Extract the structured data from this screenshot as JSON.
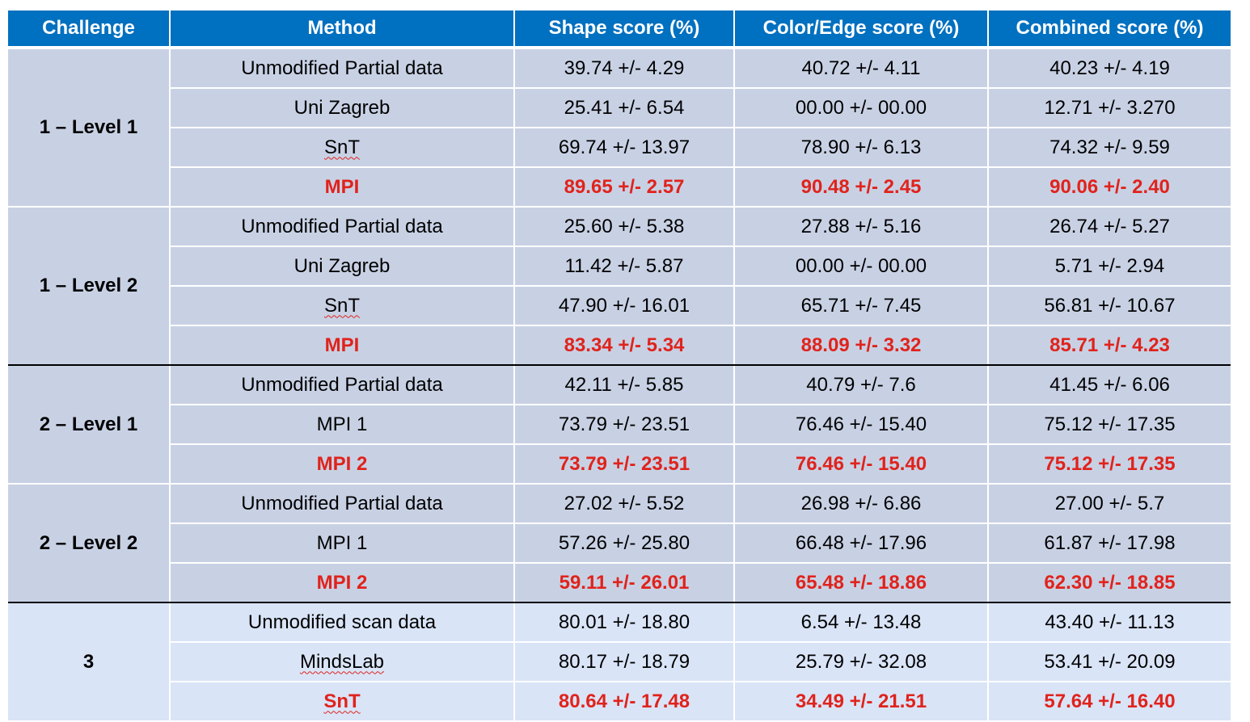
{
  "header": [
    "Challenge",
    "Method",
    "Shape score (%)",
    "Color/Edge score (%)",
    "Combined score (%)"
  ],
  "groups": [
    {
      "challenge": "1 – Level 1",
      "rows": [
        {
          "method": "Unmodified Partial data",
          "shape": "39.74 +/- 4.29",
          "color": "40.72 +/- 4.11",
          "combined": "40.23 +/- 4.19",
          "highlight": false
        },
        {
          "method": "Uni Zagreb",
          "shape": "25.41 +/- 6.54",
          "color": "00.00 +/- 00.00",
          "combined": "12.71 +/- 3.270",
          "highlight": false
        },
        {
          "method": "SnT",
          "shape": "69.74 +/- 13.97",
          "color": "78.90 +/- 6.13",
          "combined": "74.32 +/- 9.59",
          "highlight": false
        },
        {
          "method": "MPI",
          "shape": "89.65 +/- 2.57",
          "color": "90.48 +/- 2.45",
          "combined": "90.06 +/- 2.40",
          "highlight": true
        }
      ]
    },
    {
      "challenge": "1 – Level 2",
      "rows": [
        {
          "method": "Unmodified Partial data",
          "shape": "25.60 +/- 5.38",
          "color": "27.88 +/- 5.16",
          "combined": "26.74 +/- 5.27",
          "highlight": false
        },
        {
          "method": "Uni Zagreb",
          "shape": "11.42 +/- 5.87",
          "color": "00.00 +/- 00.00",
          "combined": "5.71 +/- 2.94",
          "highlight": false
        },
        {
          "method": "SnT",
          "shape": "47.90 +/- 16.01",
          "color": "65.71 +/- 7.45",
          "combined": "56.81 +/- 10.67",
          "highlight": false
        },
        {
          "method": "MPI",
          "shape": "83.34 +/- 5.34",
          "color": "88.09 +/- 3.32",
          "combined": "85.71 +/- 4.23",
          "highlight": true
        }
      ]
    },
    {
      "challenge": "2 – Level 1",
      "rows": [
        {
          "method": "Unmodified Partial data",
          "shape": "42.11 +/- 5.85",
          "color": "40.79 +/- 7.6",
          "combined": "41.45 +/- 6.06",
          "highlight": false
        },
        {
          "method": "MPI 1",
          "shape": "73.79 +/- 23.51",
          "color": "76.46 +/- 15.40",
          "combined": "75.12 +/- 17.35",
          "highlight": false
        },
        {
          "method": "MPI 2",
          "shape": "73.79 +/- 23.51",
          "color": "76.46 +/- 15.40",
          "combined": "75.12 +/- 17.35",
          "highlight": true
        }
      ]
    },
    {
      "challenge": "2 – Level 2",
      "rows": [
        {
          "method": "Unmodified Partial data",
          "shape": "27.02 +/- 5.52",
          "color": "26.98 +/- 6.86",
          "combined": "27.00 +/- 5.7",
          "highlight": false
        },
        {
          "method": "MPI 1",
          "shape": "57.26 +/- 25.80",
          "color": "66.48 +/- 17.96",
          "combined": "61.87 +/- 17.98",
          "highlight": false
        },
        {
          "method": "MPI 2",
          "shape": "59.11 +/- 26.01",
          "color": "65.48 +/- 18.86",
          "combined": "62.30 +/- 18.85",
          "highlight": true
        }
      ]
    },
    {
      "challenge": "3",
      "rows": [
        {
          "method": "Unmodified scan data",
          "shape": "80.01 +/- 18.80",
          "color": "6.54 +/- 13.48",
          "combined": "43.40 +/- 11.13",
          "highlight": false
        },
        {
          "method": "MindsLab",
          "shape": "80.17 +/- 18.79",
          "color": "25.79 +/- 32.08",
          "combined": "53.41 +/- 20.09",
          "highlight": false
        },
        {
          "method": "SnT",
          "shape": "80.64 +/- 17.48",
          "color": "34.49 +/- 21.51",
          "combined": "57.64 +/- 16.40",
          "highlight": true
        }
      ]
    }
  ],
  "colors": {
    "header_bg": "#0070c0",
    "row_bg": "#c8d1e4",
    "row_bg_light": "#d9e4f7",
    "highlight_text": "#e0231c"
  }
}
